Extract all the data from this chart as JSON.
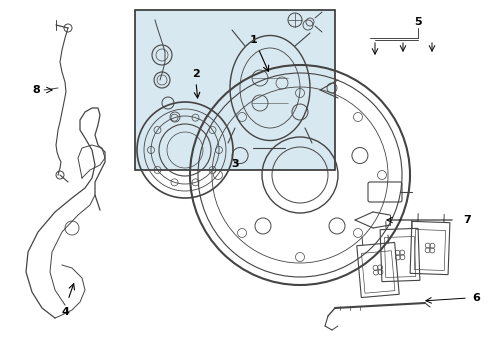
{
  "bg_color": "#ffffff",
  "line_color": "#444444",
  "box_bg": "#d8e8f0",
  "fig_width": 4.9,
  "fig_height": 3.6,
  "dpi": 100
}
